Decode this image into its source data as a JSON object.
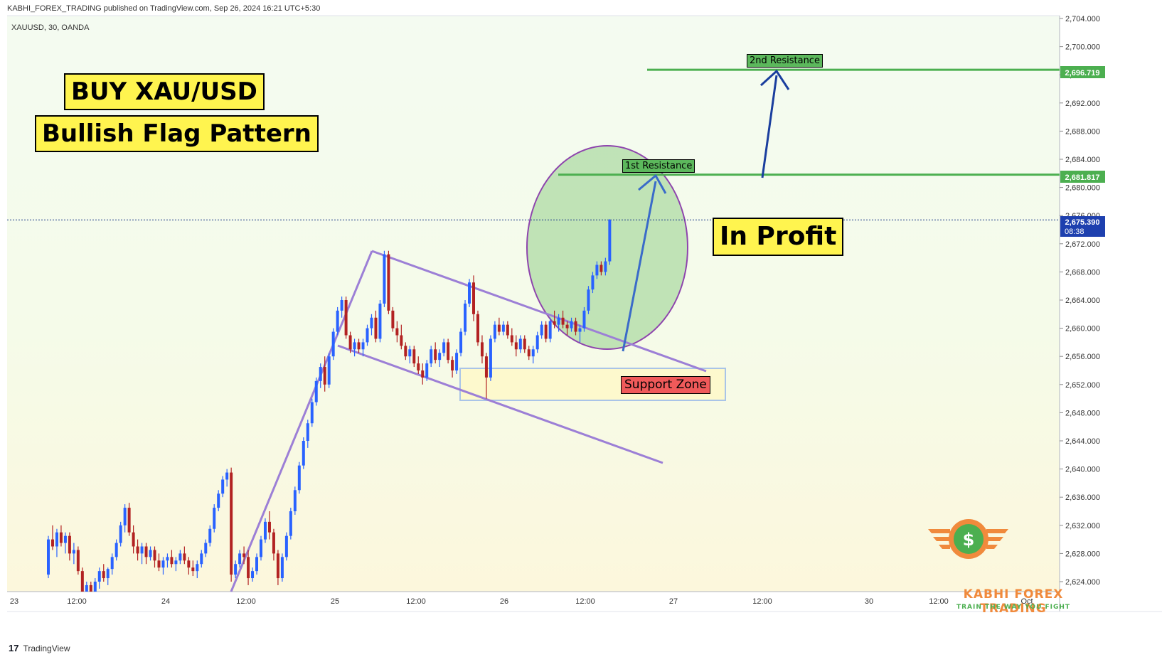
{
  "header": {
    "publisher_line": "KABHI_FOREX_TRADING published on TradingView.com, Sep 26, 2024 16:21 UTC+5:30"
  },
  "symbol": "XAUUSD, 30, OANDA",
  "annotations": {
    "title": "BUY XAU/USD",
    "subtitle": "Bullish Flag Pattern",
    "status": "In Profit",
    "support_zone": "Support Zone",
    "first_resistance": "1st Resistance",
    "second_resistance": "2nd Resistance"
  },
  "price_tags": {
    "second_resistance": "2,696.719",
    "first_resistance": "2,681.817",
    "current": "2,675.390",
    "countdown": "08:38"
  },
  "brand": {
    "name": "KABHI FOREX TRADING",
    "tagline": "TRAIN THE WAY YOU FIGHT",
    "symbol": "$"
  },
  "footer": {
    "logo": "17",
    "label": "TradingView"
  },
  "colors": {
    "up": "#2962ff",
    "down": "#b22222",
    "pattern": "#9c7fd6",
    "resistance": "#4caf50",
    "arrow": "#1a3e9e",
    "current_tag": "#1e40af"
  },
  "chart_data": {
    "type": "candlestick",
    "ylim": [
      2622,
      2705
    ],
    "y_ticks": [
      "2,704.000",
      "2,700.000",
      "2,696.000",
      "2,692.000",
      "2,688.000",
      "2,684.000",
      "2,680.000",
      "2,676.000",
      "2,672.000",
      "2,668.000",
      "2,664.000",
      "2,660.000",
      "2,656.000",
      "2,652.000",
      "2,648.000",
      "2,644.000",
      "2,640.000",
      "2,636.000",
      "2,632.000",
      "2,628.000",
      "2,624.000"
    ],
    "x_ticks": [
      "23",
      "12:00",
      "24",
      "12:00",
      "25",
      "12:00",
      "26",
      "12:00",
      "27",
      "12:00",
      "30",
      "12:00",
      "Oct"
    ],
    "resistance_levels": [
      2681.817,
      2696.719
    ],
    "current_price": 2675.39,
    "candles": [
      [
        2625.0,
        2630.5,
        2624.5,
        2630.0
      ],
      [
        2630.0,
        2632.0,
        2628.5,
        2629.0
      ],
      [
        2629.0,
        2631.5,
        2627.5,
        2631.0
      ],
      [
        2631.0,
        2632.0,
        2629.0,
        2629.5
      ],
      [
        2629.5,
        2631.0,
        2628.0,
        2630.5
      ],
      [
        2630.5,
        2631.0,
        2627.0,
        2628.0
      ],
      [
        2628.0,
        2629.5,
        2626.5,
        2628.5
      ],
      [
        2628.5,
        2629.0,
        2625.0,
        2625.5
      ],
      [
        2625.5,
        2626.0,
        2622.0,
        2622.5
      ],
      [
        2622.5,
        2624.0,
        2621.5,
        2623.5
      ],
      [
        2623.5,
        2624.0,
        2622.0,
        2622.5
      ],
      [
        2622.5,
        2624.5,
        2622.0,
        2624.0
      ],
      [
        2624.0,
        2626.0,
        2623.0,
        2625.5
      ],
      [
        2625.5,
        2626.5,
        2624.0,
        2624.5
      ],
      [
        2624.5,
        2626.0,
        2623.5,
        2625.8
      ],
      [
        2625.8,
        2628.0,
        2625.0,
        2627.5
      ],
      [
        2627.5,
        2630.0,
        2627.0,
        2629.5
      ],
      [
        2629.5,
        2632.5,
        2629.0,
        2632.0
      ],
      [
        2632.0,
        2635.0,
        2631.0,
        2634.5
      ],
      [
        2634.5,
        2635.2,
        2630.5,
        2631.0
      ],
      [
        2631.0,
        2632.0,
        2628.0,
        2629.0
      ],
      [
        2629.0,
        2630.0,
        2627.0,
        2628.0
      ],
      [
        2628.0,
        2629.5,
        2626.5,
        2629.0
      ],
      [
        2629.0,
        2629.5,
        2626.5,
        2627.5
      ],
      [
        2627.5,
        2629.0,
        2627.0,
        2628.5
      ],
      [
        2628.5,
        2629.0,
        2626.0,
        2627.0
      ],
      [
        2627.0,
        2628.0,
        2625.5,
        2626.0
      ],
      [
        2626.0,
        2627.5,
        2625.0,
        2627.0
      ],
      [
        2627.0,
        2628.0,
        2626.0,
        2627.5
      ],
      [
        2627.5,
        2628.5,
        2626.0,
        2626.5
      ],
      [
        2626.5,
        2627.5,
        2625.5,
        2627.0
      ],
      [
        2627.0,
        2628.5,
        2626.5,
        2628.0
      ],
      [
        2628.0,
        2629.0,
        2626.5,
        2627.0
      ],
      [
        2627.0,
        2627.5,
        2625.0,
        2626.0
      ],
      [
        2626.0,
        2627.0,
        2624.8,
        2625.5
      ],
      [
        2625.5,
        2627.0,
        2624.5,
        2626.5
      ],
      [
        2626.5,
        2628.5,
        2626.0,
        2628.0
      ],
      [
        2628.0,
        2630.0,
        2627.5,
        2629.5
      ],
      [
        2629.5,
        2632.0,
        2629.0,
        2631.5
      ],
      [
        2631.5,
        2635.0,
        2631.0,
        2634.5
      ],
      [
        2634.5,
        2637.0,
        2634.0,
        2636.5
      ],
      [
        2636.5,
        2639.0,
        2636.0,
        2638.5
      ],
      [
        2638.5,
        2640.0,
        2637.5,
        2639.5
      ],
      [
        2639.5,
        2640.2,
        2624.0,
        2625.0
      ],
      [
        2625.0,
        2627.0,
        2624.5,
        2626.5
      ],
      [
        2626.5,
        2628.5,
        2626.0,
        2628.0
      ],
      [
        2628.0,
        2629.0,
        2626.5,
        2627.5
      ],
      [
        2627.5,
        2628.5,
        2623.5,
        2624.5
      ],
      [
        2624.5,
        2626.0,
        2624.0,
        2625.5
      ],
      [
        2625.5,
        2628.0,
        2625.0,
        2627.5
      ],
      [
        2627.5,
        2630.5,
        2627.0,
        2630.0
      ],
      [
        2630.0,
        2633.0,
        2629.5,
        2632.5
      ],
      [
        2632.5,
        2634.0,
        2630.0,
        2631.0
      ],
      [
        2631.0,
        2631.5,
        2627.0,
        2628.0
      ],
      [
        2628.0,
        2628.5,
        2623.5,
        2624.5
      ],
      [
        2624.5,
        2628.0,
        2624.0,
        2627.5
      ],
      [
        2627.5,
        2631.0,
        2627.0,
        2630.5
      ],
      [
        2630.5,
        2634.5,
        2630.0,
        2634.0
      ],
      [
        2634.0,
        2637.5,
        2633.5,
        2637.0
      ],
      [
        2637.0,
        2641.0,
        2636.5,
        2640.5
      ],
      [
        2640.5,
        2644.5,
        2640.0,
        2644.0
      ],
      [
        2644.0,
        2647.0,
        2643.0,
        2646.5
      ],
      [
        2646.5,
        2650.0,
        2646.0,
        2649.5
      ],
      [
        2649.5,
        2653.0,
        2649.0,
        2652.5
      ],
      [
        2652.5,
        2655.0,
        2651.5,
        2654.5
      ],
      [
        2654.5,
        2656.0,
        2651.0,
        2652.0
      ],
      [
        2652.0,
        2656.5,
        2651.5,
        2656.0
      ],
      [
        2656.0,
        2660.0,
        2655.5,
        2659.5
      ],
      [
        2659.5,
        2663.0,
        2659.0,
        2662.5
      ],
      [
        2662.5,
        2664.5,
        2661.5,
        2664.0
      ],
      [
        2664.0,
        2664.5,
        2658.5,
        2659.0
      ],
      [
        2659.0,
        2659.5,
        2656.5,
        2657.0
      ],
      [
        2657.0,
        2658.5,
        2656.0,
        2658.0
      ],
      [
        2658.0,
        2658.5,
        2656.5,
        2657.0
      ],
      [
        2657.0,
        2658.5,
        2656.0,
        2658.0
      ],
      [
        2658.0,
        2660.5,
        2657.5,
        2660.0
      ],
      [
        2660.0,
        2662.0,
        2659.0,
        2661.5
      ],
      [
        2661.5,
        2662.5,
        2658.0,
        2658.5
      ],
      [
        2658.5,
        2664.0,
        2658.0,
        2663.5
      ],
      [
        2663.5,
        2671.0,
        2663.0,
        2670.5
      ],
      [
        2670.5,
        2671.0,
        2662.0,
        2662.5
      ],
      [
        2662.5,
        2663.0,
        2659.5,
        2660.0
      ],
      [
        2660.0,
        2661.0,
        2658.0,
        2659.0
      ],
      [
        2659.0,
        2660.5,
        2657.0,
        2657.5
      ],
      [
        2657.5,
        2658.0,
        2655.5,
        2656.0
      ],
      [
        2656.0,
        2657.5,
        2655.0,
        2657.0
      ],
      [
        2657.0,
        2657.5,
        2654.5,
        2655.0
      ],
      [
        2655.0,
        2656.0,
        2653.5,
        2654.0
      ],
      [
        2654.0,
        2655.0,
        2652.0,
        2653.0
      ],
      [
        2653.0,
        2655.5,
        2652.5,
        2655.0
      ],
      [
        2655.0,
        2657.5,
        2654.5,
        2657.0
      ],
      [
        2657.0,
        2658.0,
        2655.0,
        2655.5
      ],
      [
        2655.5,
        2657.0,
        2654.5,
        2656.5
      ],
      [
        2656.5,
        2658.5,
        2656.0,
        2658.0
      ],
      [
        2658.0,
        2658.5,
        2655.0,
        2655.5
      ],
      [
        2655.5,
        2656.0,
        2653.0,
        2654.0
      ],
      [
        2654.0,
        2657.0,
        2653.5,
        2656.5
      ],
      [
        2656.5,
        2660.0,
        2656.0,
        2659.5
      ],
      [
        2659.5,
        2664.0,
        2659.0,
        2663.5
      ],
      [
        2663.5,
        2667.0,
        2663.0,
        2666.5
      ],
      [
        2666.5,
        2667.5,
        2661.0,
        2662.0
      ],
      [
        2662.0,
        2662.5,
        2657.5,
        2658.0
      ],
      [
        2658.0,
        2659.0,
        2655.0,
        2656.0
      ],
      [
        2656.0,
        2656.5,
        2650.0,
        2653.0
      ],
      [
        2653.0,
        2659.0,
        2652.5,
        2658.5
      ],
      [
        2658.5,
        2661.0,
        2658.0,
        2660.5
      ],
      [
        2660.5,
        2661.5,
        2659.0,
        2659.5
      ],
      [
        2659.5,
        2661.0,
        2659.0,
        2660.5
      ],
      [
        2660.5,
        2661.0,
        2658.5,
        2659.0
      ],
      [
        2659.0,
        2660.0,
        2657.5,
        2658.0
      ],
      [
        2658.0,
        2659.0,
        2656.0,
        2657.0
      ],
      [
        2657.0,
        2659.0,
        2656.5,
        2658.5
      ],
      [
        2658.5,
        2659.0,
        2656.5,
        2657.0
      ],
      [
        2657.0,
        2657.5,
        2655.5,
        2656.0
      ],
      [
        2656.0,
        2657.5,
        2655.0,
        2657.0
      ],
      [
        2657.0,
        2659.5,
        2656.5,
        2659.0
      ],
      [
        2659.0,
        2661.0,
        2658.5,
        2660.5
      ],
      [
        2660.5,
        2661.0,
        2658.0,
        2658.5
      ],
      [
        2658.5,
        2661.5,
        2658.0,
        2661.0
      ],
      [
        2661.0,
        2662.5,
        2660.0,
        2660.5
      ],
      [
        2660.5,
        2662.0,
        2659.5,
        2661.5
      ],
      [
        2661.5,
        2662.5,
        2660.0,
        2660.5
      ],
      [
        2660.5,
        2661.0,
        2659.0,
        2660.0
      ],
      [
        2660.0,
        2661.5,
        2659.5,
        2661.0
      ],
      [
        2661.0,
        2661.5,
        2659.0,
        2659.5
      ],
      [
        2659.5,
        2660.5,
        2658.0,
        2660.0
      ],
      [
        2660.0,
        2663.0,
        2659.5,
        2662.5
      ],
      [
        2662.5,
        2666.0,
        2662.0,
        2665.5
      ],
      [
        2665.5,
        2668.0,
        2665.0,
        2667.5
      ],
      [
        2667.5,
        2669.5,
        2667.0,
        2669.0
      ],
      [
        2669.0,
        2669.5,
        2667.5,
        2668.0
      ],
      [
        2668.0,
        2670.0,
        2667.5,
        2669.5
      ],
      [
        2669.5,
        2675.5,
        2669.0,
        2675.4
      ]
    ]
  }
}
